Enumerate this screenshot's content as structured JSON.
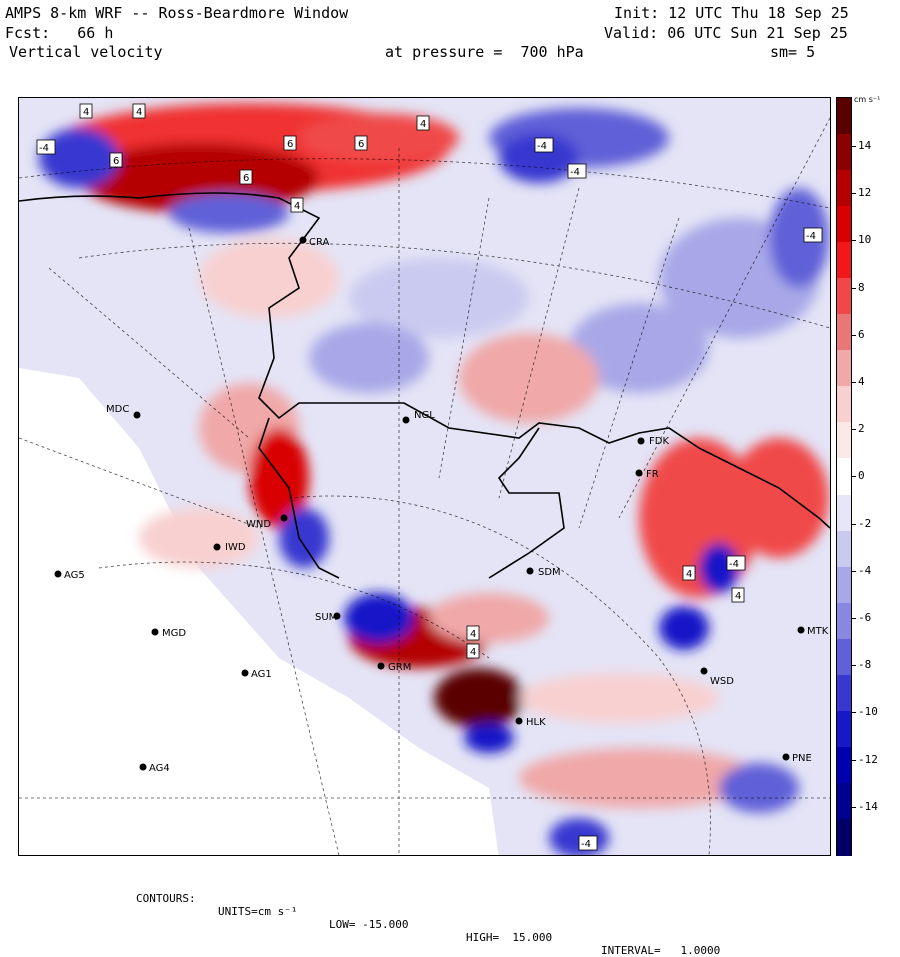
{
  "header": {
    "title": "AMPS 8-km WRF -- Ross-Beardmore Window",
    "forecast": "Fcst:   66 h",
    "field": "Vertical velocity",
    "init": "Init: 12 UTC Thu 18 Sep 25",
    "valid": "Valid: 06 UTC Sun 21 Sep 25",
    "pressure": "at pressure =  700 hPa",
    "smoothing": "sm= 5"
  },
  "colorbar": {
    "units_label": "cm s⁻¹",
    "ticks": [
      "14",
      "12",
      "10",
      "8",
      "6",
      "4",
      "2",
      "0",
      "-2",
      "-4",
      "-6",
      "-8",
      "-10",
      "-12",
      "-14"
    ],
    "colors": [
      "#5a0000",
      "#8b0000",
      "#b40000",
      "#d80000",
      "#f01818",
      "#f04848",
      "#e87878",
      "#f0a8a8",
      "#f8d0d0",
      "#fbe8e8",
      "#ffffff",
      "#e6e6f8",
      "#cacaf0",
      "#a8a8e8",
      "#8888e0",
      "#6060d8",
      "#3838d0",
      "#1818c8",
      "#0000b0",
      "#000090",
      "#000068"
    ]
  },
  "stations": [
    {
      "id": "CRA",
      "label": "CRA"
    },
    {
      "id": "MDC",
      "label": "MDC"
    },
    {
      "id": "NGL",
      "label": "NGL"
    },
    {
      "id": "FDK",
      "label": "FDK"
    },
    {
      "id": "FR",
      "label": "FR"
    },
    {
      "id": "WND",
      "label": "WND"
    },
    {
      "id": "IWD",
      "label": "IWD"
    },
    {
      "id": "AG5",
      "label": "AG5"
    },
    {
      "id": "SDM",
      "label": "SDM"
    },
    {
      "id": "SUM",
      "label": "SUM"
    },
    {
      "id": "MGD",
      "label": "MGD"
    },
    {
      "id": "MTK",
      "label": "MTK"
    },
    {
      "id": "AG1",
      "label": "AG1"
    },
    {
      "id": "GRM",
      "label": "GRM"
    },
    {
      "id": "WSD",
      "label": "WSD"
    },
    {
      "id": "HLK",
      "label": "HLK"
    },
    {
      "id": "PNE",
      "label": "PNE"
    },
    {
      "id": "AG4",
      "label": "AG4"
    }
  ],
  "contour_labels": [
    "4",
    "4",
    "-4",
    "4",
    "6",
    "6",
    "6",
    "6",
    "-4",
    "-4",
    "4",
    "-4",
    "4",
    "4",
    "-4",
    "4",
    "4",
    "-4"
  ],
  "footer": {
    "contours": "CONTOURS:",
    "units": "UNITS=cm s⁻¹",
    "low": "LOW= -15.000",
    "high": "HIGH=  15.000",
    "interval": "INTERVAL=   1.0000"
  }
}
